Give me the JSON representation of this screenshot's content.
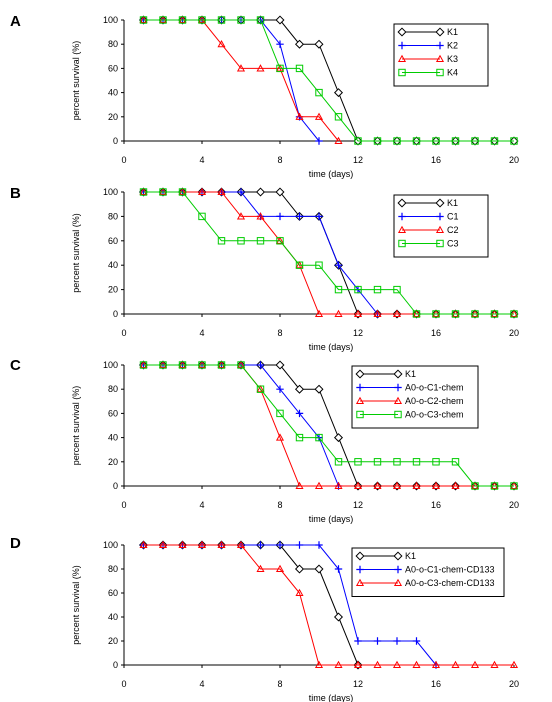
{
  "chart_data": [
    {
      "type": "line",
      "panel_label": "A",
      "xlabel": "time (days)",
      "ylabel": "percent survival (%)",
      "xlim": [
        0,
        20
      ],
      "ylim": [
        0,
        100
      ],
      "xticks": [
        0,
        4,
        8,
        12,
        16,
        20
      ],
      "yticks": [
        0,
        20,
        40,
        60,
        80,
        100
      ],
      "grid": false,
      "legend_position": "top-right",
      "series": [
        {
          "name": "K1",
          "color": "#000000",
          "marker": "diamond",
          "x": [
            1,
            2,
            3,
            4,
            5,
            6,
            7,
            8,
            9,
            10,
            11,
            12,
            13,
            14,
            15,
            16,
            17,
            18,
            19,
            20
          ],
          "y": [
            100,
            100,
            100,
            100,
            100,
            100,
            100,
            100,
            80,
            80,
            40,
            0,
            0,
            0,
            0,
            0,
            0,
            0,
            0,
            0
          ]
        },
        {
          "name": "K2",
          "color": "#0000ff",
          "marker": "plus",
          "x": [
            1,
            2,
            3,
            4,
            5,
            6,
            7,
            8,
            9,
            10
          ],
          "y": [
            100,
            100,
            100,
            100,
            100,
            100,
            100,
            80,
            20,
            0
          ]
        },
        {
          "name": "K3",
          "color": "#ff0000",
          "marker": "triangle",
          "x": [
            1,
            2,
            3,
            4,
            5,
            6,
            7,
            8,
            9,
            10,
            11
          ],
          "y": [
            100,
            100,
            100,
            100,
            80,
            60,
            60,
            60,
            20,
            20,
            0
          ]
        },
        {
          "name": "K4",
          "color": "#00cc00",
          "marker": "square",
          "x": [
            1,
            2,
            3,
            4,
            5,
            6,
            7,
            8,
            9,
            10,
            11,
            12,
            13,
            14,
            15,
            16,
            17,
            18,
            19,
            20
          ],
          "y": [
            100,
            100,
            100,
            100,
            100,
            100,
            100,
            60,
            60,
            40,
            20,
            0,
            0,
            0,
            0,
            0,
            0,
            0,
            0,
            0
          ]
        }
      ]
    },
    {
      "type": "line",
      "panel_label": "B",
      "xlabel": "time (days)",
      "ylabel": "percent survival (%)",
      "xlim": [
        0,
        20
      ],
      "ylim": [
        0,
        100
      ],
      "xticks": [
        0,
        4,
        8,
        12,
        16,
        20
      ],
      "yticks": [
        0,
        20,
        40,
        60,
        80,
        100
      ],
      "grid": false,
      "legend_position": "top-right",
      "series": [
        {
          "name": "K1",
          "color": "#000000",
          "marker": "diamond",
          "x": [
            1,
            2,
            3,
            4,
            5,
            6,
            7,
            8,
            9,
            10,
            11,
            12,
            13,
            14,
            15,
            16,
            17,
            18,
            19,
            20
          ],
          "y": [
            100,
            100,
            100,
            100,
            100,
            100,
            100,
            100,
            80,
            80,
            40,
            0,
            0,
            0,
            0,
            0,
            0,
            0,
            0,
            0
          ]
        },
        {
          "name": "C1",
          "color": "#0000ff",
          "marker": "plus",
          "x": [
            1,
            2,
            3,
            4,
            5,
            6,
            7,
            8,
            9,
            10,
            11,
            12,
            13
          ],
          "y": [
            100,
            100,
            100,
            100,
            100,
            100,
            80,
            80,
            80,
            80,
            40,
            20,
            0
          ]
        },
        {
          "name": "C2",
          "color": "#ff0000",
          "marker": "triangle",
          "x": [
            1,
            2,
            3,
            4,
            5,
            6,
            7,
            8,
            9,
            10,
            11,
            12,
            13,
            14,
            15,
            16,
            17,
            18,
            19,
            20
          ],
          "y": [
            100,
            100,
            100,
            100,
            100,
            80,
            80,
            60,
            40,
            0,
            0,
            0,
            0,
            0,
            0,
            0,
            0,
            0,
            0,
            0
          ]
        },
        {
          "name": "C3",
          "color": "#00cc00",
          "marker": "square",
          "x": [
            1,
            2,
            3,
            4,
            5,
            6,
            7,
            8,
            9,
            10,
            11,
            12,
            13,
            14,
            15,
            16,
            17,
            18,
            19,
            20
          ],
          "y": [
            100,
            100,
            100,
            80,
            60,
            60,
            60,
            60,
            40,
            40,
            20,
            20,
            20,
            20,
            0,
            0,
            0,
            0,
            0,
            0
          ]
        }
      ]
    },
    {
      "type": "line",
      "panel_label": "C",
      "xlabel": "time (days)",
      "ylabel": "percent survival (%)",
      "xlim": [
        0,
        20
      ],
      "ylim": [
        0,
        100
      ],
      "xticks": [
        0,
        4,
        8,
        12,
        16,
        20
      ],
      "yticks": [
        0,
        20,
        40,
        60,
        80,
        100
      ],
      "grid": false,
      "legend_position": "top-right",
      "series": [
        {
          "name": "K1",
          "color": "#000000",
          "marker": "diamond",
          "x": [
            1,
            2,
            3,
            4,
            5,
            6,
            7,
            8,
            9,
            10,
            11,
            12,
            13,
            14,
            15,
            16,
            17,
            18,
            19,
            20
          ],
          "y": [
            100,
            100,
            100,
            100,
            100,
            100,
            100,
            100,
            80,
            80,
            40,
            0,
            0,
            0,
            0,
            0,
            0,
            0,
            0,
            0
          ]
        },
        {
          "name": "A0-o-C1-chem",
          "color": "#0000ff",
          "marker": "plus",
          "x": [
            1,
            2,
            3,
            4,
            5,
            6,
            7,
            8,
            9,
            10,
            11
          ],
          "y": [
            100,
            100,
            100,
            100,
            100,
            100,
            100,
            80,
            60,
            40,
            0
          ]
        },
        {
          "name": "A0-o-C2-chem",
          "color": "#ff0000",
          "marker": "triangle",
          "x": [
            1,
            2,
            3,
            4,
            5,
            6,
            7,
            8,
            9,
            10,
            11,
            12,
            13,
            14,
            15,
            16,
            17,
            18,
            19,
            20
          ],
          "y": [
            100,
            100,
            100,
            100,
            100,
            100,
            80,
            40,
            0,
            0,
            0,
            0,
            0,
            0,
            0,
            0,
            0,
            0,
            0,
            0
          ]
        },
        {
          "name": "A0-o-C3-chem",
          "color": "#00cc00",
          "marker": "square",
          "x": [
            1,
            2,
            3,
            4,
            5,
            6,
            7,
            8,
            9,
            10,
            11,
            12,
            13,
            14,
            15,
            16,
            17,
            18,
            19,
            20
          ],
          "y": [
            100,
            100,
            100,
            100,
            100,
            100,
            80,
            60,
            40,
            40,
            20,
            20,
            20,
            20,
            20,
            20,
            20,
            0,
            0,
            0
          ]
        }
      ]
    },
    {
      "type": "line",
      "panel_label": "D",
      "xlabel": "time (days)",
      "ylabel": "percent survival (%)",
      "xlim": [
        0,
        20
      ],
      "ylim": [
        0,
        100
      ],
      "xticks": [
        0,
        4,
        8,
        12,
        16,
        20
      ],
      "yticks": [
        0,
        20,
        40,
        60,
        80,
        100
      ],
      "grid": false,
      "legend_position": "top-right",
      "series": [
        {
          "name": "K1",
          "color": "#000000",
          "marker": "diamond",
          "x": [
            1,
            2,
            3,
            4,
            5,
            6,
            7,
            8,
            9,
            10,
            11,
            12
          ],
          "y": [
            100,
            100,
            100,
            100,
            100,
            100,
            100,
            100,
            80,
            80,
            40,
            0
          ]
        },
        {
          "name": "A0-o-C1-chem-CD133",
          "color": "#0000ff",
          "marker": "plus",
          "x": [
            1,
            2,
            3,
            4,
            5,
            6,
            7,
            8,
            9,
            10,
            11,
            12,
            13,
            14,
            15,
            16
          ],
          "y": [
            100,
            100,
            100,
            100,
            100,
            100,
            100,
            100,
            100,
            100,
            80,
            20,
            20,
            20,
            20,
            0
          ]
        },
        {
          "name": "A0-o-C3-chem-CD133",
          "color": "#ff0000",
          "marker": "triangle",
          "x": [
            1,
            2,
            3,
            4,
            5,
            6,
            7,
            8,
            9,
            10,
            11,
            12,
            13,
            14,
            15,
            16,
            17,
            18,
            19,
            20
          ],
          "y": [
            100,
            100,
            100,
            100,
            100,
            100,
            80,
            80,
            60,
            0,
            0,
            0,
            0,
            0,
            0,
            0,
            0,
            0,
            0,
            0
          ]
        }
      ]
    }
  ]
}
